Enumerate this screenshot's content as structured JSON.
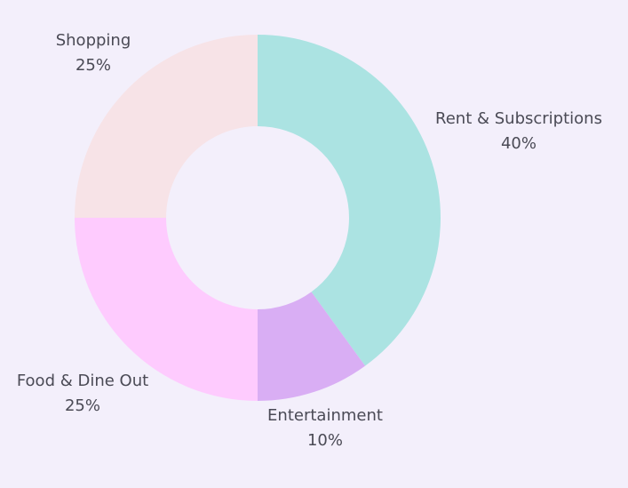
{
  "chart_data": {
    "type": "pie",
    "variant": "donut",
    "title": "",
    "slices": [
      {
        "label": "Rent & Subscriptions",
        "value": 40,
        "percent_label": "40%",
        "color": "#abe3e2"
      },
      {
        "label": "Entertainment",
        "value": 10,
        "percent_label": "10%",
        "color": "#d9aef4"
      },
      {
        "label": "Food & Dine Out",
        "value": 25,
        "percent_label": "25%",
        "color": "#fecbfe"
      },
      {
        "label": "Shopping",
        "value": 25,
        "percent_label": "25%",
        "color": "#f7e3e7"
      }
    ],
    "start_angle": "12 o'clock",
    "direction": "clockwise",
    "legend": "none",
    "labels": "outside"
  },
  "colors": {
    "background": "#f3effb",
    "label_text": "#4a4a55"
  }
}
